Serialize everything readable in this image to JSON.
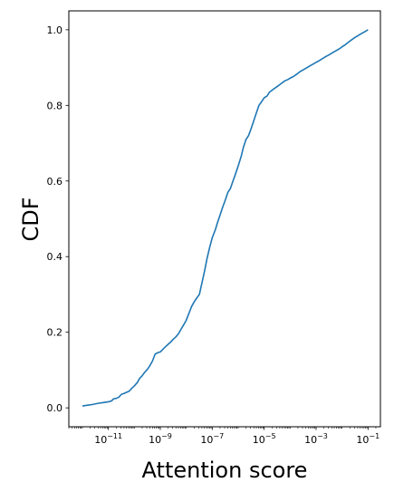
{
  "chart_data": {
    "type": "line",
    "title": "",
    "xlabel": "Attention score",
    "ylabel": "CDF",
    "x_scale": "log",
    "xlim": [
      3e-13,
      0.3
    ],
    "ylim": [
      -0.05,
      1.05
    ],
    "x_ticks": [
      {
        "value": 1e-11,
        "base": "10",
        "exp": "−11"
      },
      {
        "value": 1e-09,
        "base": "10",
        "exp": "−9"
      },
      {
        "value": 1e-07,
        "base": "10",
        "exp": "−7"
      },
      {
        "value": 1e-05,
        "base": "10",
        "exp": "−5"
      },
      {
        "value": 0.001,
        "base": "10",
        "exp": "−3"
      },
      {
        "value": 0.1,
        "base": "10",
        "exp": "−1"
      }
    ],
    "y_ticks": [
      {
        "value": 0.0,
        "label": "0.0"
      },
      {
        "value": 0.2,
        "label": "0.2"
      },
      {
        "value": 0.4,
        "label": "0.4"
      },
      {
        "value": 0.6,
        "label": "0.6"
      },
      {
        "value": 0.8,
        "label": "0.8"
      },
      {
        "value": 1.0,
        "label": "1.0"
      }
    ],
    "grid": false,
    "series": [
      {
        "color": "#1f77b4",
        "x": [
          1e-12,
          1.6e-12,
          2.5e-12,
          4e-12,
          6.3e-12,
          1e-11,
          1.3e-11,
          1.6e-11,
          2e-11,
          2.5e-11,
          3.2e-11,
          4e-11,
          5e-11,
          6.3e-11,
          8e-11,
          1e-10,
          1.3e-10,
          1.6e-10,
          2e-10,
          2.5e-10,
          3.2e-10,
          4e-10,
          5e-10,
          6.3e-10,
          8e-10,
          1e-09,
          1.3e-09,
          1.6e-09,
          2e-09,
          2.5e-09,
          3.2e-09,
          4e-09,
          5e-09,
          6.3e-09,
          8e-09,
          1e-08,
          1.3e-08,
          1.6e-08,
          2e-08,
          2.5e-08,
          3.2e-08,
          4e-08,
          5e-08,
          6.3e-08,
          8e-08,
          1e-07,
          1.3e-07,
          1.6e-07,
          2e-07,
          2.5e-07,
          3.2e-07,
          4e-07,
          5e-07,
          6.3e-07,
          8e-07,
          1e-06,
          1.3e-06,
          1.6e-06,
          2e-06,
          2.5e-06,
          3.2e-06,
          4e-06,
          5e-06,
          6.3e-06,
          8e-06,
          1e-05,
          1.3e-05,
          1.6e-05,
          2e-05,
          2.5e-05,
          3.2e-05,
          4e-05,
          5e-05,
          6.3e-05,
          8e-05,
          0.0001,
          0.00013,
          0.00016,
          0.0002,
          0.00025,
          0.00032,
          0.0004,
          0.0005,
          0.00063,
          0.0008,
          0.001,
          0.0013,
          0.0016,
          0.002,
          0.0025,
          0.0032,
          0.004,
          0.005,
          0.0063,
          0.008,
          0.01,
          0.013,
          0.016,
          0.02,
          0.025,
          0.032,
          0.04,
          0.05,
          0.063,
          0.08,
          0.1
        ],
        "y": [
          0.005,
          0.007,
          0.009,
          0.012,
          0.014,
          0.016,
          0.018,
          0.024,
          0.025,
          0.028,
          0.036,
          0.038,
          0.041,
          0.044,
          0.052,
          0.058,
          0.067,
          0.078,
          0.085,
          0.094,
          0.102,
          0.112,
          0.124,
          0.142,
          0.146,
          0.148,
          0.156,
          0.162,
          0.168,
          0.174,
          0.182,
          0.188,
          0.196,
          0.208,
          0.22,
          0.232,
          0.252,
          0.268,
          0.28,
          0.29,
          0.3,
          0.33,
          0.36,
          0.395,
          0.425,
          0.45,
          0.47,
          0.49,
          0.51,
          0.53,
          0.55,
          0.57,
          0.58,
          0.6,
          0.62,
          0.64,
          0.665,
          0.69,
          0.71,
          0.72,
          0.74,
          0.76,
          0.78,
          0.8,
          0.81,
          0.82,
          0.825,
          0.835,
          0.84,
          0.845,
          0.85,
          0.855,
          0.86,
          0.865,
          0.868,
          0.872,
          0.876,
          0.88,
          0.885,
          0.89,
          0.894,
          0.898,
          0.902,
          0.906,
          0.91,
          0.914,
          0.918,
          0.922,
          0.926,
          0.93,
          0.934,
          0.938,
          0.942,
          0.946,
          0.95,
          0.955,
          0.96,
          0.965,
          0.97,
          0.975,
          0.98,
          0.984,
          0.988,
          0.992,
          0.996,
          1.0
        ]
      }
    ]
  }
}
